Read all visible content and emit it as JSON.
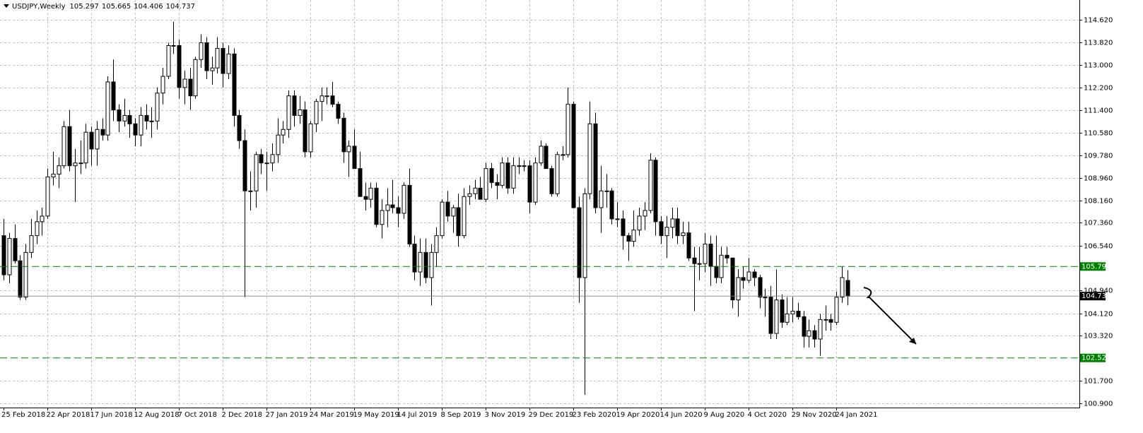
{
  "chart_data": {
    "type": "candlestick",
    "symbol": "USDJPY,Weekly",
    "categories": [
      "25 Feb 2018",
      null,
      null,
      null,
      null,
      null,
      null,
      null,
      "22 Apr 2018",
      null,
      null,
      null,
      null,
      null,
      null,
      null,
      "17 Jun 2018",
      null,
      null,
      null,
      null,
      null,
      null,
      null,
      "12 Aug 2018",
      null,
      null,
      null,
      null,
      null,
      null,
      null,
      "7 Oct 2018",
      null,
      null,
      null,
      null,
      null,
      null,
      null,
      "2 Dec 2018",
      null,
      null,
      null,
      null,
      null,
      null,
      null,
      "27 Jan 2019",
      null,
      null,
      null,
      null,
      null,
      null,
      null,
      "24 Mar 2019",
      null,
      null,
      null,
      null,
      null,
      null,
      null,
      "19 May 2019",
      null,
      null,
      null,
      null,
      null,
      null,
      null,
      "14 Jul 2019",
      null,
      null,
      null,
      null,
      null,
      null,
      null,
      "8 Sep 2019",
      null,
      null,
      null,
      null,
      null,
      null,
      null,
      "3 Nov 2019",
      null,
      null,
      null,
      null,
      null,
      null,
      null,
      "29 Dec 2019",
      null,
      null,
      null,
      null,
      null,
      null,
      null,
      "23 Feb 2020",
      null,
      null,
      null,
      null,
      null,
      null,
      null,
      "19 Apr 2020",
      null,
      null,
      null,
      null,
      null,
      null,
      null,
      "14 Jun 2020",
      null,
      null,
      null,
      null,
      null,
      null,
      null,
      "9 Aug 2020",
      null,
      null,
      null,
      null,
      null,
      null,
      null,
      "4 Oct 2020",
      null,
      null,
      null,
      null,
      null,
      null,
      null,
      "29 Nov 2020",
      null,
      null,
      null,
      null,
      null,
      null,
      null,
      "24 Jan 2021",
      null,
      null
    ],
    "open": [
      106.9,
      105.5,
      106.8,
      106.0,
      104.7,
      106.3,
      106.9,
      107.4,
      107.6,
      109.0,
      109.1,
      109.4,
      110.8,
      109.4,
      109.5,
      109.5,
      110.6,
      110.0,
      110.7,
      110.5,
      112.4,
      111.4,
      111.0,
      111.2,
      110.9,
      110.5,
      111.2,
      111.0,
      111.0,
      112.0,
      112.6,
      113.7,
      113.7,
      112.2,
      112.5,
      111.9,
      113.2,
      113.8,
      112.8,
      112.9,
      113.6,
      112.7,
      113.4,
      111.2,
      110.3,
      108.5,
      108.5,
      109.8,
      109.5,
      109.5,
      109.8,
      110.5,
      110.7,
      111.9,
      111.2,
      111.4,
      109.9,
      110.9,
      111.7,
      111.9,
      111.9,
      111.6,
      111.1,
      109.9,
      110.1,
      109.3,
      108.3,
      108.2,
      108.6,
      107.3,
      107.8,
      108.0,
      107.9,
      107.7,
      108.7,
      106.6,
      105.6,
      106.3,
      105.4,
      106.3,
      106.9,
      108.1,
      107.6,
      107.9,
      106.9,
      108.3,
      108.4,
      108.6,
      108.2,
      109.3,
      108.8,
      108.7,
      109.5,
      108.6,
      109.4,
      109.4,
      109.4,
      108.1,
      109.5,
      110.1,
      109.3,
      108.4,
      109.8,
      109.8,
      111.6,
      107.9,
      105.4,
      108.4,
      110.9,
      107.9,
      108.5,
      108.5,
      107.5,
      107.5,
      106.9,
      106.7,
      107.1,
      107.6,
      107.8,
      109.6,
      107.4,
      106.9,
      107.2,
      107.5,
      106.9,
      107.0,
      106.1,
      105.9,
      105.9,
      106.6,
      105.8,
      105.4,
      106.2,
      106.1,
      104.6,
      105.4,
      105.3,
      105.6,
      105.4,
      104.7,
      104.7,
      103.4,
      104.6,
      103.8,
      104.1,
      104.2,
      104.0,
      103.3,
      103.5,
      103.2,
      103.9,
      103.9,
      103.8,
      104.7,
      105.297
    ],
    "high": [
      107.5,
      107.0,
      107.3,
      106.2,
      106.6,
      107.5,
      107.8,
      107.9,
      109.3,
      109.9,
      109.7,
      111.0,
      111.4,
      110.0,
      110.3,
      110.9,
      110.8,
      111.0,
      111.1,
      112.6,
      113.2,
      111.6,
      111.8,
      111.4,
      111.1,
      111.5,
      111.6,
      111.5,
      112.2,
      112.9,
      113.8,
      114.55,
      113.9,
      112.8,
      112.9,
      113.3,
      114.1,
      114.0,
      113.3,
      114.0,
      113.8,
      113.7,
      113.6,
      111.4,
      110.7,
      109.2,
      109.9,
      110.0,
      109.9,
      110.2,
      111.1,
      111.0,
      112.1,
      112.1,
      111.9,
      111.7,
      111.0,
      111.8,
      112.2,
      112.2,
      112.4,
      111.7,
      111.3,
      110.3,
      110.7,
      109.9,
      108.8,
      108.8,
      108.8,
      108.2,
      108.6,
      108.9,
      108.3,
      108.8,
      109.3,
      106.9,
      106.8,
      106.8,
      106.6,
      107.2,
      108.2,
      108.5,
      108.0,
      108.4,
      108.6,
      108.7,
      108.9,
      109.0,
      109.5,
      109.5,
      109.1,
      109.7,
      109.7,
      109.7,
      109.7,
      109.6,
      109.6,
      109.7,
      110.3,
      110.2,
      109.4,
      109.9,
      110.1,
      112.2,
      111.7,
      108.3,
      108.6,
      111.7,
      111.3,
      109.4,
      109.1,
      108.6,
      108.1,
      107.8,
      107.0,
      107.8,
      107.9,
      108.1,
      109.85,
      109.7,
      107.6,
      107.6,
      107.9,
      107.9,
      107.4,
      107.4,
      106.5,
      106.5,
      107.0,
      106.9,
      106.9,
      106.5,
      106.5,
      106.1,
      105.7,
      105.8,
      106.1,
      105.7,
      105.5,
      105.0,
      105.1,
      105.7,
      104.8,
      104.7,
      104.7,
      104.5,
      104.2,
      103.9,
      103.7,
      104.1,
      104.4,
      104.1,
      104.9,
      105.8,
      105.665
    ],
    "low": [
      105.3,
      105.2,
      105.9,
      104.6,
      104.6,
      106.1,
      106.6,
      106.9,
      107.5,
      108.7,
      108.6,
      109.3,
      109.2,
      108.1,
      109.1,
      109.3,
      109.4,
      109.4,
      110.3,
      110.3,
      111.0,
      110.6,
      110.8,
      110.4,
      110.1,
      110.1,
      110.7,
      110.4,
      110.7,
      111.6,
      112.5,
      113.4,
      111.8,
      111.6,
      111.4,
      111.8,
      112.9,
      112.5,
      112.3,
      112.7,
      112.2,
      112.5,
      110.8,
      110.0,
      104.7,
      107.8,
      107.9,
      109.1,
      108.5,
      109.2,
      109.5,
      110.2,
      110.4,
      110.8,
      110.9,
      109.7,
      109.7,
      110.6,
      111.0,
      111.6,
      111.5,
      110.9,
      109.5,
      109.0,
      109.3,
      108.3,
      107.8,
      107.9,
      107.2,
      106.8,
      107.2,
      107.7,
      107.2,
      107.5,
      106.5,
      105.3,
      105.1,
      105.2,
      104.4,
      105.8,
      106.8,
      107.4,
      107.0,
      106.5,
      106.8,
      108.0,
      108.2,
      108.2,
      108.1,
      108.6,
      108.2,
      108.6,
      108.4,
      108.4,
      109.1,
      109.2,
      107.7,
      108.0,
      109.4,
      109.3,
      108.3,
      108.3,
      109.6,
      109.7,
      107.9,
      104.5,
      101.2,
      108.2,
      107.7,
      107.0,
      107.9,
      107.3,
      107.2,
      106.4,
      106.0,
      106.5,
      106.9,
      107.1,
      107.7,
      106.9,
      106.6,
      106.1,
      106.8,
      106.6,
      106.6,
      106.0,
      104.2,
      105.3,
      105.6,
      105.1,
      105.2,
      105.2,
      105.9,
      104.3,
      104.0,
      105.0,
      105.2,
      105.1,
      104.3,
      104.0,
      103.2,
      103.2,
      103.6,
      103.7,
      103.8,
      103.9,
      102.9,
      102.9,
      102.9,
      102.6,
      103.5,
      103.5,
      103.7,
      104.5,
      104.406
    ],
    "close": [
      105.5,
      106.8,
      106.0,
      104.7,
      106.3,
      106.9,
      107.4,
      107.6,
      109.0,
      109.1,
      109.4,
      110.8,
      109.4,
      109.5,
      109.5,
      110.6,
      110.0,
      110.7,
      110.5,
      112.4,
      111.4,
      111.0,
      111.2,
      110.9,
      110.5,
      111.2,
      111.0,
      111.0,
      112.0,
      112.6,
      113.7,
      113.7,
      112.2,
      112.5,
      111.9,
      113.2,
      113.8,
      112.8,
      112.9,
      113.6,
      112.7,
      113.4,
      111.2,
      110.3,
      108.5,
      108.5,
      109.8,
      109.5,
      109.5,
      109.8,
      110.5,
      110.7,
      111.9,
      111.2,
      111.4,
      109.9,
      110.9,
      111.7,
      111.9,
      111.9,
      111.6,
      111.1,
      109.9,
      110.1,
      109.3,
      108.3,
      108.2,
      108.6,
      107.3,
      107.8,
      108.0,
      107.9,
      107.7,
      108.7,
      106.6,
      105.6,
      106.3,
      105.4,
      106.3,
      106.9,
      108.1,
      107.6,
      107.9,
      106.9,
      108.3,
      108.4,
      108.6,
      108.2,
      109.3,
      108.8,
      108.7,
      109.5,
      108.6,
      109.4,
      109.4,
      109.4,
      108.1,
      109.5,
      110.1,
      109.3,
      108.4,
      109.8,
      109.8,
      111.6,
      107.9,
      105.4,
      108.4,
      110.9,
      107.9,
      108.5,
      108.5,
      107.5,
      107.5,
      106.9,
      106.7,
      107.1,
      107.6,
      107.8,
      109.6,
      107.4,
      106.9,
      107.2,
      107.5,
      106.9,
      107.0,
      106.1,
      105.9,
      105.9,
      106.6,
      105.8,
      105.4,
      106.2,
      106.1,
      104.6,
      105.4,
      105.3,
      105.6,
      105.4,
      104.7,
      104.7,
      103.4,
      104.6,
      103.8,
      104.1,
      104.2,
      104.0,
      103.3,
      103.5,
      103.2,
      103.9,
      103.9,
      103.8,
      104.7,
      105.4,
      104.737
    ],
    "ylim": [
      100.8,
      115.33
    ],
    "yticks": [
      {
        "value": 114.62,
        "label": "114.620"
      },
      {
        "value": 113.82,
        "label": "113.820"
      },
      {
        "value": 113,
        "label": "113.000"
      },
      {
        "value": 112.2,
        "label": "112.200"
      },
      {
        "value": 111.4,
        "label": "111.400"
      },
      {
        "value": 110.58,
        "label": "110.580"
      },
      {
        "value": 109.78,
        "label": "109.780"
      },
      {
        "value": 108.96,
        "label": "108.960"
      },
      {
        "value": 108.16,
        "label": "108.160"
      },
      {
        "value": 107.36,
        "label": "107.360"
      },
      {
        "value": 106.54,
        "label": "106.540"
      },
      {
        "value": 104.94,
        "label": "104.940"
      },
      {
        "value": 104.12,
        "label": "104.120"
      },
      {
        "value": 103.32,
        "label": "103.320"
      },
      {
        "value": 101.7,
        "label": "101.700"
      },
      {
        "value": 100.9,
        "label": "100.900"
      }
    ],
    "levels": [
      105.796,
      102.525
    ],
    "level_color": "#008000",
    "up_color": "#ffffff",
    "down_color": "#000000",
    "grid": true
  }
}
